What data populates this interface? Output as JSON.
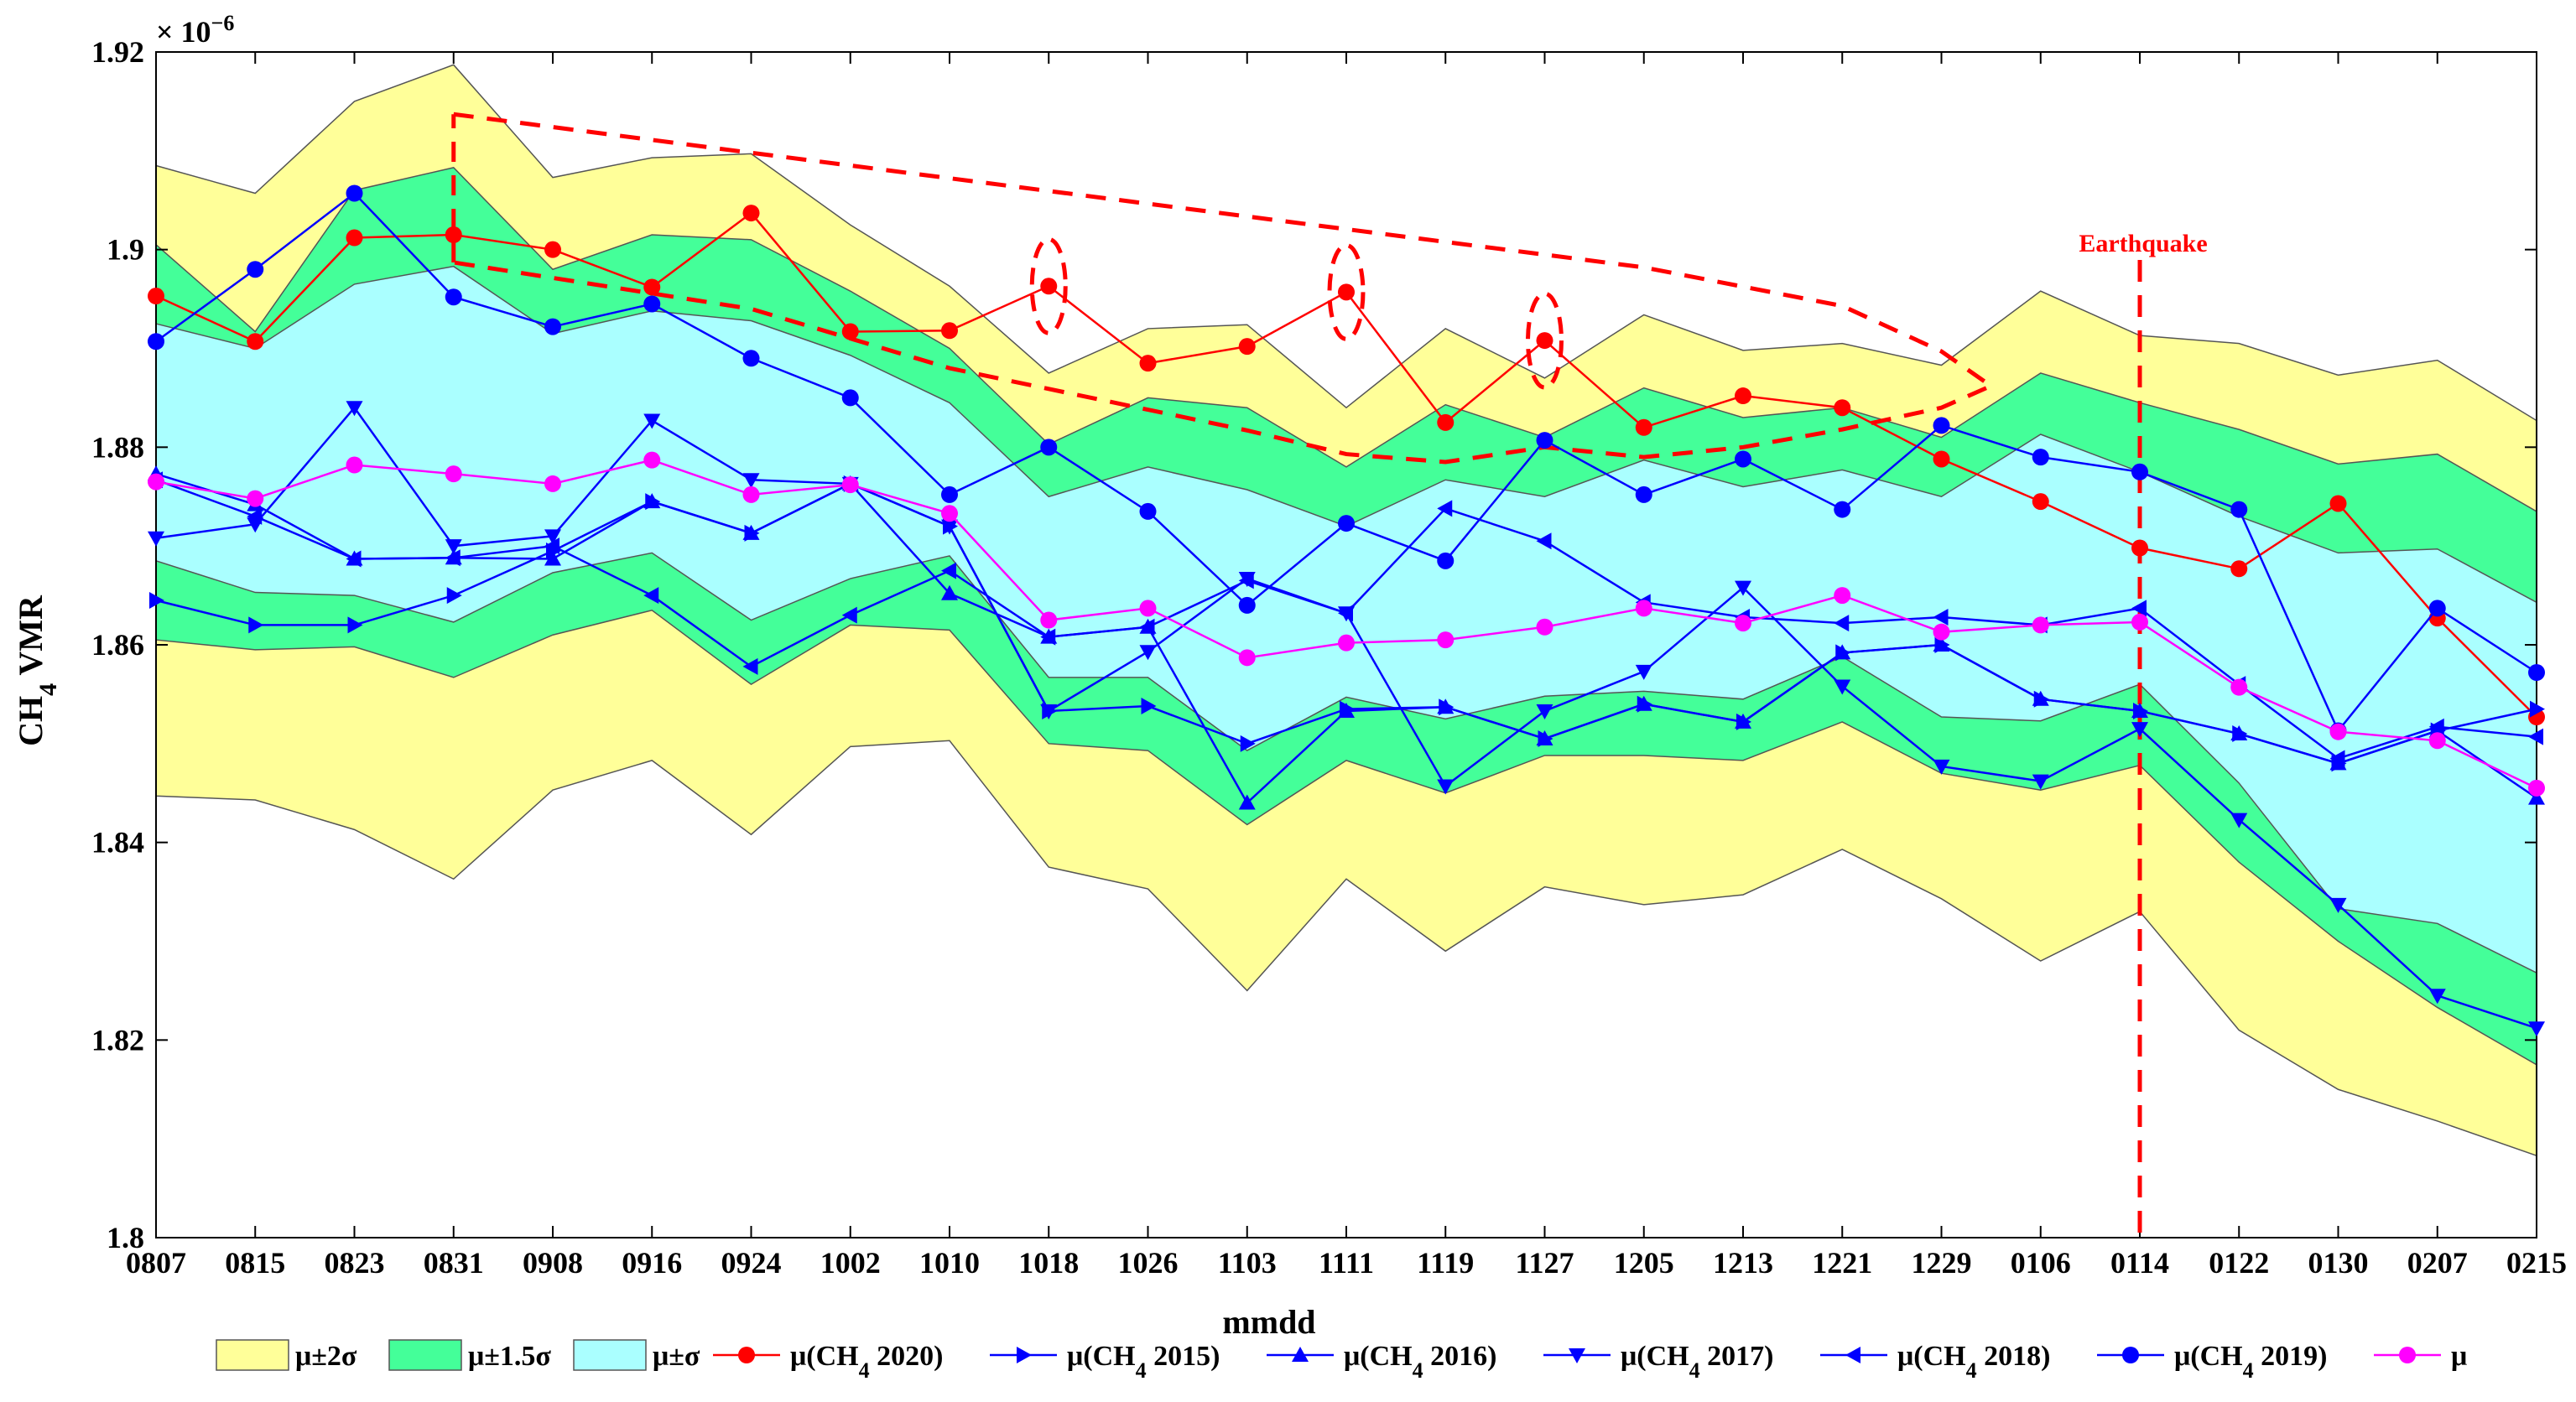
{
  "chart_data": {
    "type": "line",
    "xlabel": "mmdd",
    "ylabel_main": "CH",
    "ylabel_sub": "4",
    "ylabel_rest": " VMR",
    "y_exponent_base": "× 10",
    "y_exponent_power": "−6",
    "ylim": [
      1.8,
      1.92
    ],
    "yticks": [
      1.8,
      1.82,
      1.84,
      1.86,
      1.88,
      1.9,
      1.92
    ],
    "ytick_labels": [
      "1.8",
      "1.82",
      "1.84",
      "1.86",
      "1.88",
      "1.9",
      "1.92"
    ],
    "categories": [
      "0807",
      "0815",
      "0823",
      "0831",
      "0908",
      "0916",
      "0924",
      "1002",
      "1010",
      "1018",
      "1026",
      "1103",
      "1111",
      "1119",
      "1127",
      "1205",
      "1213",
      "1221",
      "1229",
      "0106",
      "0114",
      "0122",
      "0130",
      "0207",
      "0215"
    ],
    "bands": {
      "upper_2s": [
        1.9085,
        1.9057,
        1.915,
        1.9187,
        1.9073,
        1.9093,
        1.9097,
        1.9025,
        1.8963,
        1.8875,
        1.892,
        1.8924,
        1.884,
        1.892,
        1.887,
        1.8934,
        1.8898,
        1.8905,
        1.8883,
        1.8958,
        1.8913,
        1.8905,
        1.8873,
        1.8888,
        1.8827
      ],
      "upper_15s": [
        1.9005,
        1.8917,
        1.906,
        1.9083,
        1.898,
        1.9015,
        1.901,
        1.8958,
        1.89,
        1.8803,
        1.885,
        1.884,
        1.878,
        1.8843,
        1.881,
        1.886,
        1.883,
        1.884,
        1.881,
        1.8875,
        1.8845,
        1.8818,
        1.8783,
        1.8793,
        1.8735
      ],
      "upper_1s": [
        1.8925,
        1.89,
        1.8965,
        1.8983,
        1.8915,
        1.8938,
        1.8928,
        1.8893,
        1.8845,
        1.875,
        1.878,
        1.8757,
        1.872,
        1.8767,
        1.875,
        1.8787,
        1.876,
        1.8777,
        1.875,
        1.8813,
        1.8775,
        1.873,
        1.8693,
        1.8697,
        1.8643
      ],
      "lower_1s": [
        1.8685,
        1.8653,
        1.865,
        1.8623,
        1.8673,
        1.8693,
        1.8625,
        1.8667,
        1.869,
        1.8567,
        1.8567,
        1.8493,
        1.8547,
        1.8525,
        1.8548,
        1.8553,
        1.8545,
        1.8588,
        1.8527,
        1.8523,
        1.856,
        1.846,
        1.8333,
        1.8318,
        1.8268
      ],
      "lower_15s": [
        1.8605,
        1.8595,
        1.8598,
        1.8567,
        1.861,
        1.8635,
        1.856,
        1.862,
        1.8615,
        1.85,
        1.8493,
        1.8418,
        1.8483,
        1.845,
        1.8488,
        1.8488,
        1.8483,
        1.8522,
        1.847,
        1.8453,
        1.8478,
        1.838,
        1.83,
        1.8233,
        1.8175
      ],
      "lower_2s": [
        1.8447,
        1.8443,
        1.8413,
        1.8363,
        1.8453,
        1.8483,
        1.8408,
        1.8497,
        1.8503,
        1.8375,
        1.8353,
        1.825,
        1.8363,
        1.829,
        1.8355,
        1.8337,
        1.8347,
        1.8393,
        1.8343,
        1.828,
        1.833,
        1.821,
        1.815,
        1.8118,
        1.8083
      ]
    },
    "series": [
      {
        "name": "μ(CH",
        "sub": "4",
        "suffix": " 2020)",
        "color": "#ff0000",
        "marker": "circle",
        "values": [
          1.8953,
          1.8907,
          1.9012,
          1.9015,
          1.9,
          1.8962,
          1.9037,
          1.8917,
          1.8918,
          1.8963,
          1.8885,
          1.8902,
          1.8957,
          1.8825,
          1.8908,
          1.882,
          1.8852,
          1.884,
          1.8788,
          1.8745,
          1.8698,
          1.8677,
          1.8743,
          1.8627,
          1.8527
        ]
      },
      {
        "name": "μ(CH",
        "sub": "4",
        "suffix": " 2015)",
        "color": "#0000ff",
        "marker": "tri-right",
        "values": [
          1.8645,
          1.862,
          1.862,
          1.865,
          1.8695,
          1.8745,
          1.8713,
          1.8763,
          1.872,
          1.8533,
          1.8538,
          1.85,
          1.8535,
          1.8537,
          1.8505,
          1.854,
          1.8522,
          1.8592,
          1.86,
          1.8545,
          1.8533,
          1.851,
          1.848,
          1.8513,
          1.8535
        ]
      },
      {
        "name": "μ(CH",
        "sub": "4",
        "suffix": " 2016)",
        "color": "#0000ff",
        "marker": "tri-up",
        "values": [
          1.8773,
          1.8742,
          1.8687,
          1.8688,
          1.8687,
          1.8745,
          1.8713,
          1.8763,
          1.8652,
          1.8608,
          1.8618,
          1.844,
          1.8533,
          1.8537,
          1.8505,
          1.854,
          1.8522,
          1.8592,
          1.86,
          1.8545,
          1.8533,
          1.851,
          1.848,
          1.8513,
          1.8445
        ]
      },
      {
        "name": "μ(CH",
        "sub": "4",
        "suffix": " 2017)",
        "color": "#0000ff",
        "marker": "tri-down",
        "values": [
          1.8708,
          1.8722,
          1.884,
          1.87,
          1.871,
          1.8827,
          1.8767,
          1.8763,
          1.872,
          1.8533,
          1.8593,
          1.8667,
          1.8632,
          1.8457,
          1.8533,
          1.8573,
          1.8658,
          1.8558,
          1.8477,
          1.8462,
          1.8515,
          1.8423,
          1.8337,
          1.8245,
          1.8212
        ]
      },
      {
        "name": "μ(CH",
        "sub": "4",
        "suffix": " 2018)",
        "color": "#0000ff",
        "marker": "tri-left",
        "values": [
          1.8767,
          1.873,
          1.8687,
          1.8688,
          1.87,
          1.865,
          1.8578,
          1.863,
          1.8675,
          1.8608,
          1.8618,
          1.8665,
          1.8632,
          1.8738,
          1.8705,
          1.8643,
          1.8628,
          1.8622,
          1.8628,
          1.862,
          1.8637,
          1.856,
          1.8485,
          1.8517,
          1.8507
        ]
      },
      {
        "name": "μ(CH",
        "sub": "4",
        "suffix": " 2019)",
        "color": "#0000ff",
        "marker": "circle",
        "values": [
          1.8907,
          1.898,
          1.9057,
          1.8952,
          1.8922,
          1.8945,
          1.889,
          1.885,
          1.8752,
          1.88,
          1.8735,
          1.864,
          1.8723,
          1.8685,
          1.8807,
          1.8752,
          1.8788,
          1.8737,
          1.8822,
          1.879,
          1.8775,
          1.8737,
          1.8513,
          1.8637,
          1.8572
        ]
      },
      {
        "name": "μ",
        "sub": "",
        "suffix": "",
        "color": "#ff00ff",
        "marker": "circle",
        "values": [
          1.8765,
          1.8748,
          1.8782,
          1.8773,
          1.8763,
          1.8787,
          1.8752,
          1.8762,
          1.8733,
          1.8625,
          1.8637,
          1.8587,
          1.8602,
          1.8605,
          1.8618,
          1.8637,
          1.8622,
          1.865,
          1.8613,
          1.862,
          1.8623,
          1.8557,
          1.8512,
          1.8503,
          1.8455
        ]
      }
    ],
    "legend": {
      "band_2s": "μ±2σ",
      "band_15s": "μ±1.5σ",
      "band_1s": "μ±σ"
    },
    "annotations": {
      "earthquake_label": "Earthquake",
      "earthquake_x": "0114"
    },
    "colors": {
      "band_2s": "#ffff99",
      "band_15s": "#44ff99",
      "band_1s": "#aaffff",
      "anomaly": "#ff0000"
    }
  }
}
